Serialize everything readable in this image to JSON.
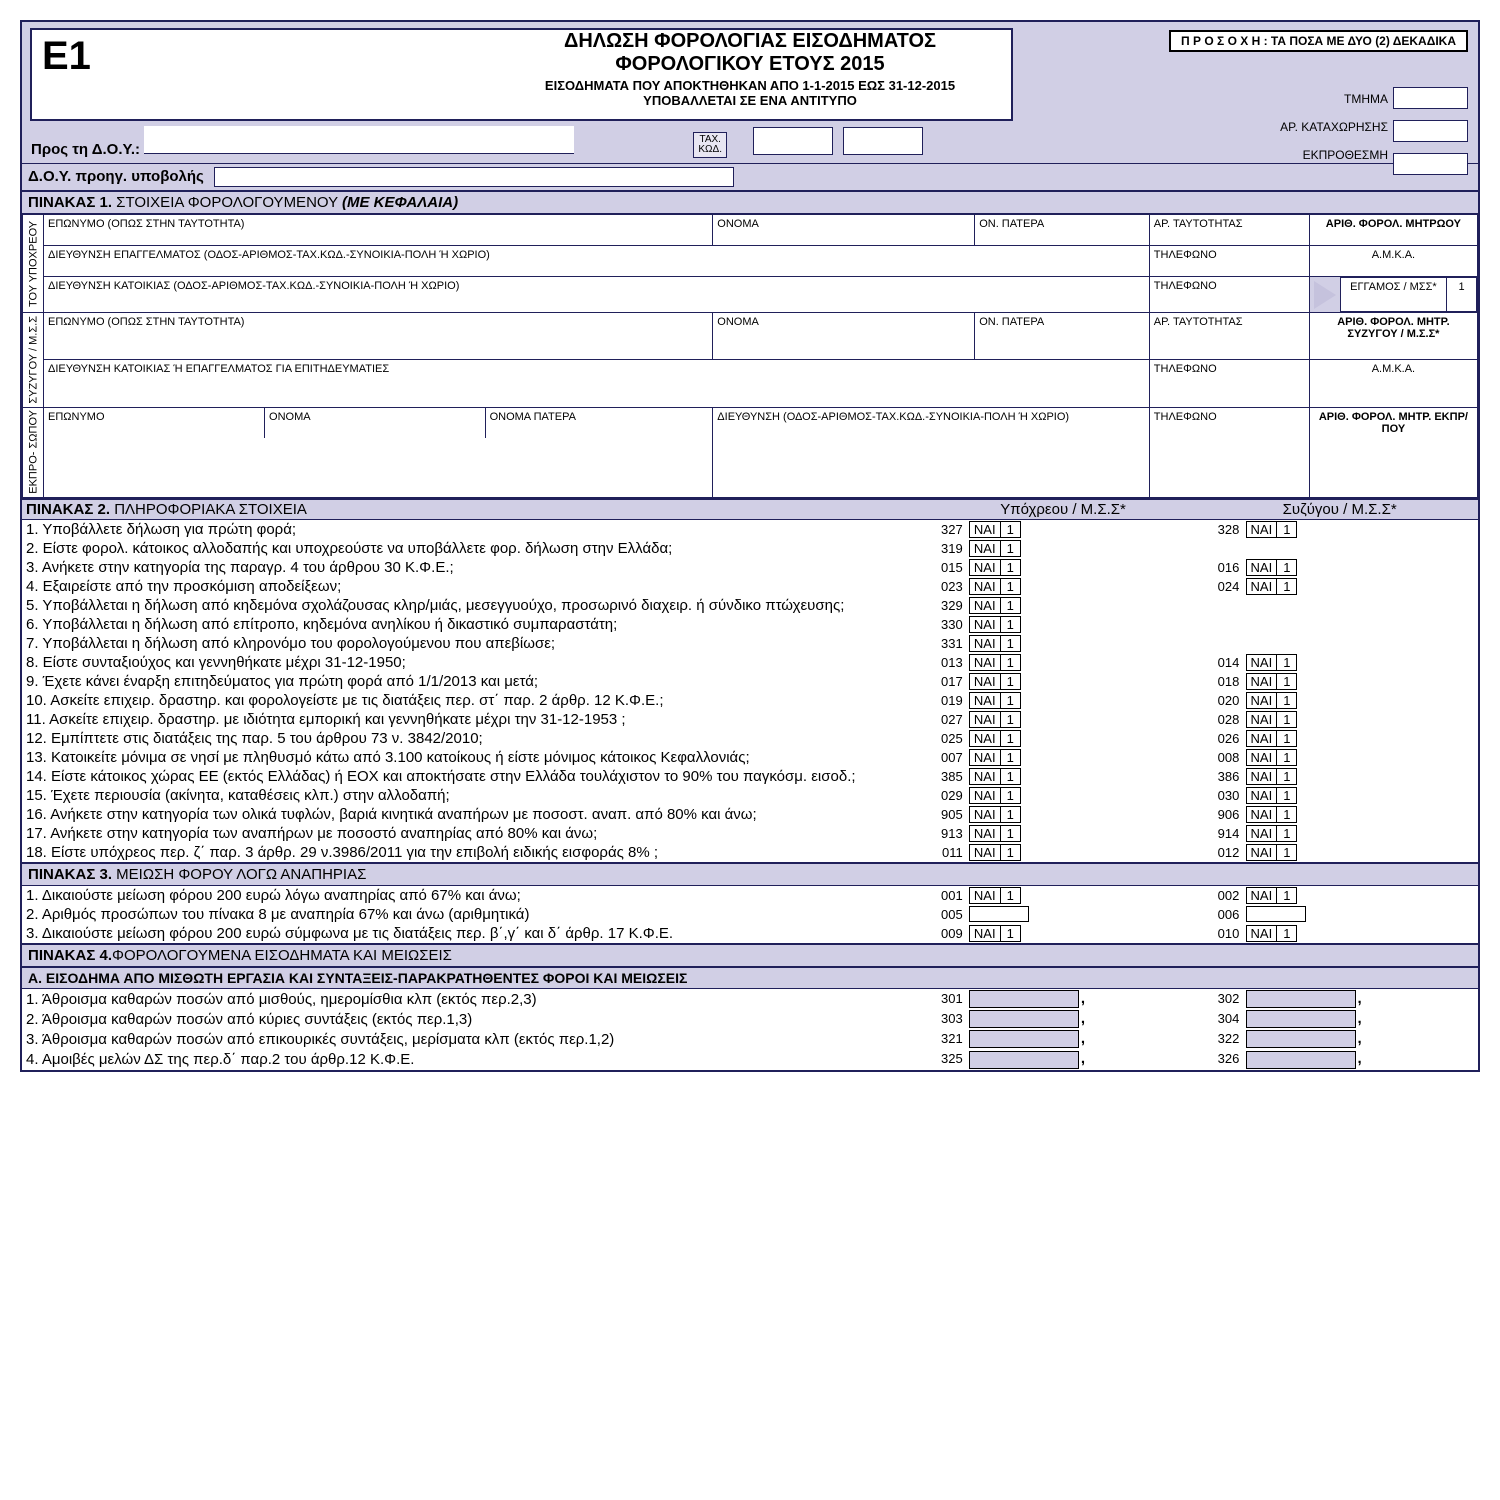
{
  "colors": {
    "border": "#20205a",
    "bg_lavender": "#d1cfe5",
    "bg_light": "#e8e6f2",
    "white": "#ffffff"
  },
  "header": {
    "form_code": "Ε1",
    "title1": "ΔΗΛΩΣΗ ΦΟΡΟΛΟΓΙΑΣ ΕΙΣΟΔΗΜΑΤΟΣ",
    "title2": "ΦΟΡΟΛΟΓΙΚΟΥ ΕΤΟΥΣ 2015",
    "sub1": "ΕΙΣΟΔΗΜΑΤΑ ΠΟΥ ΑΠΟΚΤΗΘΗΚΑΝ ΑΠΟ 1-1-2015 ΕΩΣ 31-12-2015",
    "sub2": "ΥΠΟΒΑΛΛΕΤΑΙ ΣΕ ΕΝΑ ΑΝΤΙΤΥΠΟ",
    "attention": "Π Ρ Ο Σ Ο Χ Η :  ΤΑ ΠΟΣΑ ΜΕ ΔΥΟ (2) ΔΕΚΑΔΙΚΑ",
    "tmima": "ΤΜΗΜΑ",
    "ar_kat": "ΑΡ. ΚΑΤΑΧΩΡΗΣΗΣ",
    "ekpro": "ΕΚΠΡΟΘΕΣΜΗ",
    "pros": "Προς τη Δ.Ο.Υ.:",
    "tax_kwd": "ΤΑΧ.\nΚΩΔ.",
    "prev": "Δ.Ο.Υ. προηγ. υποβολής"
  },
  "p1": {
    "title": "ΠΙΝΑΚΑΣ 1. ΣΤΟΙΧΕΙΑ ΦΟΡΟΛΟΓΟΥΜΕΝΟΥ (ΜΕ ΚΕΦΑΛΑΙΑ)",
    "side_yp": "ΤΟΥ ΥΠΟΧΡΕΟΥ",
    "side_sy": "ΣΥΖΥΓΟΥ / Μ.Σ.Σ",
    "side_ek": "ΕΚΠΡΟ- ΣΩΠΟΥ",
    "h_eponimo": "ΕΠΩΝΥΜΟ (ΟΠΩΣ ΣΤΗΝ ΤΑΥΤΟΤΗΤΑ)",
    "h_onoma": "ΟΝΟΜΑ",
    "h_onpat": "ΟΝ. ΠΑΤΕΡΑ",
    "h_artayt": "ΑΡ. ΤΑΥΤΟΤΗΤΑΣ",
    "h_afm_yp": "ΑΡΙΘ. ΦΟΡΟΛ. ΜΗΤΡΩΟΥ",
    "h_diep": "ΔΙΕΥΘΥΝΣΗ ΕΠΑΓΓΕΛΜΑΤΟΣ (ΟΔΟΣ-ΑΡΙΘΜΟΣ-ΤΑΧ.ΚΩΔ.-ΣΥΝΟΙΚΙΑ-ΠΟΛΗ Ή ΧΩΡΙΟ)",
    "h_dikat": "ΔΙΕΥΘΥΝΣΗ ΚΑΤΟΙΚΙΑΣ (ΟΔΟΣ-ΑΡΙΘΜΟΣ-ΤΑΧ.ΚΩΔ.-ΣΥΝΟΙΚΙΑ-ΠΟΛΗ Ή ΧΩΡΙΟ)",
    "h_dikat_ep": "ΔΙΕΥΘΥΝΣΗ ΚΑΤΟΙΚΙΑΣ Ή ΕΠΑΓΓΕΛΜΑΤΟΣ ΓΙΑ ΕΠΙΤΗΔΕΥΜΑΤΙΕΣ",
    "h_tel": "ΤΗΛΕΦΩΝΟ",
    "h_amka": "Α.Μ.Κ.Α.",
    "h_marry": "ΕΓΓΑΜΟΣ / ΜΣΣ*",
    "h_marry_val": "1",
    "h_afm_sy": "ΑΡΙΘ. ΦΟΡΟΛ. ΜΗΤΡ. ΣΥΖΥΓΟΥ / Μ.Σ.Σ*",
    "h_ep_simple": "ΕΠΩΝΥΜΟ",
    "h_onoma_s": "ΟΝΟΜΑ",
    "h_onpat_full": "ΟΝΟΜΑ ΠΑΤΕΡΑ",
    "h_addr_full": "ΔΙΕΥΘΥΝΣΗ (ΟΔΟΣ-ΑΡΙΘΜΟΣ-ΤΑΧ.ΚΩΔ.-ΣΥΝΟΙΚΙΑ-ΠΟΛΗ Ή ΧΩΡΙΟ)",
    "h_afm_ek": "ΑΡΙΘ. ΦΟΡΟΛ. ΜΗΤΡ. ΕΚΠΡ/ΠΟΥ"
  },
  "p2": {
    "title": "ΠΙΝΑΚΑΣ 2. ΠΛΗΡΟΦΟΡΙΑΚΑ ΣΤΟΙΧΕΙΑ",
    "col_yp": "Υπόχρεου / Μ.Σ.Σ*",
    "col_sy": "Συζύγου / Μ.Σ.Σ*",
    "nai": "ΝΑΙ",
    "one": "1",
    "rows": [
      {
        "n": "1.",
        "t": "Υποβάλλετε δήλωση για πρώτη φορά;",
        "c1": "327",
        "c2": "328"
      },
      {
        "n": "2.",
        "t": "Είστε φορολ. κάτοικος αλλοδαπής και υποχρεούστε να υποβάλλετε φορ. δήλωση στην Ελλάδα;",
        "c1": "319",
        "c2": ""
      },
      {
        "n": "3.",
        "t": "Ανήκετε στην κατηγορία της παραγρ. 4 του άρθρου 30 Κ.Φ.Ε.;",
        "c1": "015",
        "c2": "016"
      },
      {
        "n": "4.",
        "t": "Εξαιρείστε από την προσκόμιση αποδείξεων;",
        "c1": "023",
        "c2": "024"
      },
      {
        "n": "5.",
        "t": "Υποβάλλεται η δήλωση από κηδεμόνα σχολάζουσας κληρ/μιάς, μεσεγγυούχο, προσωρινό διαχειρ. ή σύνδικο πτώχευσης;",
        "c1": "329",
        "c2": "",
        "small": true
      },
      {
        "n": "6.",
        "t": "Υποβάλλεται η δήλωση από επίτροπο, κηδεμόνα ανηλίκου ή δικαστικό συμπαραστάτη;",
        "c1": "330",
        "c2": ""
      },
      {
        "n": "7.",
        "t": "Υποβάλλεται η δήλωση από κληρονόμο του φορολογούμενου που απεβίωσε;",
        "c1": "331",
        "c2": ""
      },
      {
        "n": "8.",
        "t": "Είστε συνταξιούχος και γεννηθήκατε μέχρι 31-12-1950;",
        "c1": "013",
        "c2": "014"
      },
      {
        "n": "9.",
        "t": "Έχετε κάνει έναρξη επιτηδεύματος για πρώτη φορά από 1/1/2013 και μετά;",
        "c1": "017",
        "c2": "018"
      },
      {
        "n": "10.",
        "t": "Ασκείτε επιχειρ. δραστηρ. και φορολογείστε με τις διατάξεις  περ. στ΄ παρ. 2 άρθρ. 12  Κ.Φ.Ε.;",
        "c1": "019",
        "c2": "020"
      },
      {
        "n": "11.",
        "t": "Ασκείτε επιχειρ. δραστηρ.  με ιδιότητα εμπορική  και γεννηθήκατε μέχρι την 31-12-1953 ;",
        "c1": "027",
        "c2": "028"
      },
      {
        "n": "12.",
        "t": "Εμπίπτετε στις διατάξεις της παρ. 5 του άρθρου 73 ν. 3842/2010;",
        "c1": "025",
        "c2": "026"
      },
      {
        "n": "13.",
        "t": "Κατοικείτε μόνιμα σε νησί με πληθυσμό κάτω από 3.100 κατοίκους ή είστε μόνιμος κάτοικος Κεφαλλονιάς;",
        "c1": "007",
        "c2": "008"
      },
      {
        "n": "14.",
        "t": "Είστε κάτοικος χώρας ΕΕ (εκτός Ελλάδας) ή ΕΟΧ και αποκτήσατε στην Ελλάδα τουλάχιστον το 90% του παγκόσμ. εισοδ.;",
        "c1": "385",
        "c2": "386",
        "small": true
      },
      {
        "n": "15.",
        "t": "Έχετε περιουσία (ακίνητα, καταθέσεις κλπ.)  στην αλλοδαπή;",
        "c1": "029",
        "c2": "030"
      },
      {
        "n": "16.",
        "t": "Ανήκετε στην κατηγορία των ολικά τυφλών, βαριά κινητικά αναπήρων με ποσοστ. αναπ. από 80% και άνω;",
        "c1": "905",
        "c2": "906"
      },
      {
        "n": "17.",
        "t": "Ανήκετε στην κατηγορία των αναπήρων με ποσοστό αναπηρίας από 80% και άνω;",
        "c1": "913",
        "c2": "914"
      },
      {
        "n": "18.",
        "t": "Είστε υπόχρεος περ. ζ΄ παρ. 3 άρθρ. 29 ν.3986/2011 για την επιβολή ειδικής εισφοράς 8% ;",
        "c1": "011",
        "c2": "012"
      }
    ]
  },
  "p3": {
    "title": "ΠΙΝΑΚΑΣ 3. ΜΕΙΩΣΗ ΦΟΡΟΥ ΛΟΓΩ ΑΝΑΠΗΡΙΑΣ",
    "rows": [
      {
        "n": "1.",
        "t": "Δικαιούστε μείωση φόρου 200 ευρώ λόγω αναπηρίας από 67% και άνω;",
        "c1": "001",
        "c2": "002",
        "type": "nai"
      },
      {
        "n": "2.",
        "t": "Αριθμός προσώπων του πίνακα 8 με αναπηρία 67% και άνω (αριθμητικά)",
        "c1": "005",
        "c2": "006",
        "type": "box"
      },
      {
        "n": "3.",
        "t": "Δικαιούστε μείωση φόρου 200 ευρώ σύμφωνα με τις διατάξεις  περ. β΄,γ΄ και δ΄ άρθρ. 17 Κ.Φ.Ε.",
        "c1": "009",
        "c2": "010",
        "type": "nai"
      }
    ]
  },
  "p4": {
    "title": "ΠΙΝΑΚΑΣ 4.ΦΟΡΟΛΟΓΟΥΜΕΝΑ ΕΙΣΟΔΗΜΑΤΑ ΚΑΙ ΜΕΙΩΣΕΙΣ",
    "sub_a": "Α. ΕΙΣΟΔΗΜΑ ΑΠΟ ΜΙΣΘΩΤΗ ΕΡΓΑΣΙΑ ΚΑΙ ΣΥΝΤΑΞΕΙΣ-ΠΑΡΑΚΡΑΤΗΘΕΝΤΕΣ ΦΟΡΟΙ ΚΑΙ ΜΕΙΩΣΕΙΣ",
    "rows": [
      {
        "n": "1.",
        "t": "Άθροισμα καθαρών ποσών από μισθούς, ημερομίσθια κλπ (εκτός περ.2,3)",
        "c1": "301",
        "c2": "302"
      },
      {
        "n": "2.",
        "t": "Άθροισμα καθαρών ποσών από κύριες συντάξεις (εκτός περ.1,3)",
        "c1": "303",
        "c2": "304"
      },
      {
        "n": "3.",
        "t": "Άθροισμα καθαρών ποσών από επικουρικές συντάξεις, μερίσματα κλπ (εκτός περ.1,2)",
        "c1": "321",
        "c2": "322"
      },
      {
        "n": "4.",
        "t": "Αμοιβές  μελών ΔΣ της περ.δ΄ παρ.2 του άρθρ.12  Κ.Φ.Ε.",
        "c1": "325",
        "c2": "326"
      }
    ]
  }
}
